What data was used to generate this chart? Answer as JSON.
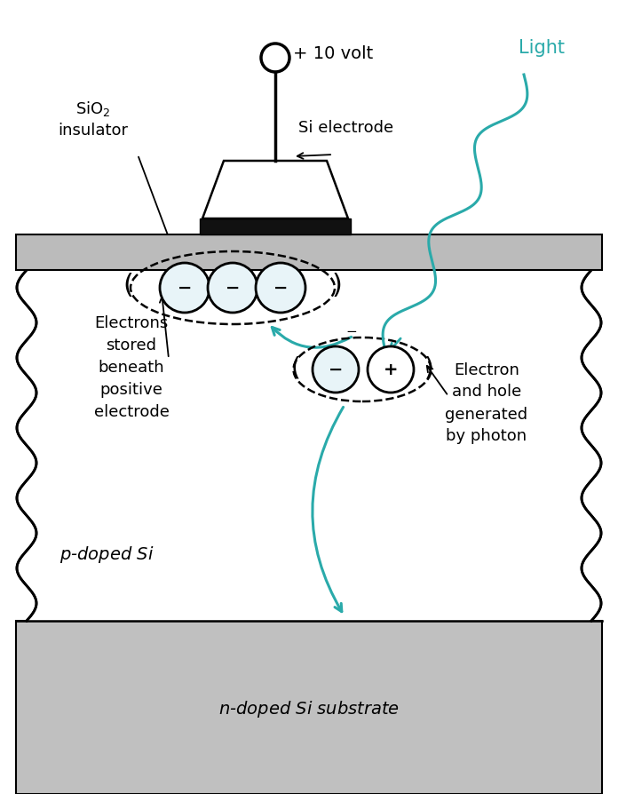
{
  "bg_color": "#ffffff",
  "teal_color": "#2AAAAA",
  "gray_oxide": "#BBBBBB",
  "gray_substrate": "#C0C0C0",
  "black": "#000000",
  "sio2_label": "SiO$_2$\ninsulator",
  "si_electrode_label": "Si electrode",
  "voltage_label": "+ 10 volt",
  "light_label": "Light",
  "electrons_label": "Electrons\nstored\nbeneath\npositive\nelectrode",
  "electron_hole_label": "Electron\nand hole\ngenerated\nby photon",
  "p_doped_label": "$p$-doped Si",
  "n_doped_label": "$n$-doped Si substrate",
  "fig_w": 6.96,
  "fig_h": 8.94,
  "dpi": 100
}
